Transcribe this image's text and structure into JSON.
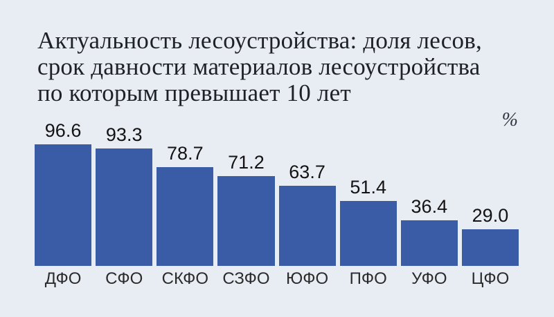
{
  "title_lines": [
    "Актуальность лесоустройства: доля лесов,",
    "срок давности материалов лесоустройства",
    "по которым превышает 10 лет"
  ],
  "unit_label": "%",
  "chart_data": {
    "type": "bar",
    "title": "Актуальность лесоустройства: доля лесов, срок давности материалов лесоустройства по которым превышает 10 лет",
    "categories": [
      "ДФО",
      "СФО",
      "СКФО",
      "СЗФО",
      "ЮФО",
      "ПФО",
      "УФО",
      "ЦФО"
    ],
    "values": [
      96.6,
      93.3,
      78.7,
      71.2,
      63.7,
      51.4,
      36.4,
      29.0
    ],
    "xlabel": "",
    "ylabel": "%",
    "ylim": [
      0,
      100
    ],
    "grid": false,
    "legend": "none",
    "value_labels_shown": true,
    "value_label_decimals": 1
  },
  "colors": {
    "bar": "#3a5ca6",
    "background": "#e8ecf3",
    "title": "#1e2126",
    "value": "#131313",
    "category": "#2b2b2b",
    "unit": "#2f3540"
  }
}
